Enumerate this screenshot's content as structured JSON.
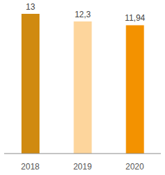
{
  "chart_data": {
    "type": "bar",
    "categories": [
      "2018",
      "2019",
      "2020"
    ],
    "values": [
      13,
      12.3,
      11.94
    ],
    "value_labels": [
      "13",
      "12,3",
      "11,94"
    ],
    "colors": [
      "#d08a10",
      "#fdd59c",
      "#f39200"
    ],
    "ylim": [
      0,
      13
    ],
    "data_labels": true,
    "tick_labels": "x",
    "grid": false
  }
}
